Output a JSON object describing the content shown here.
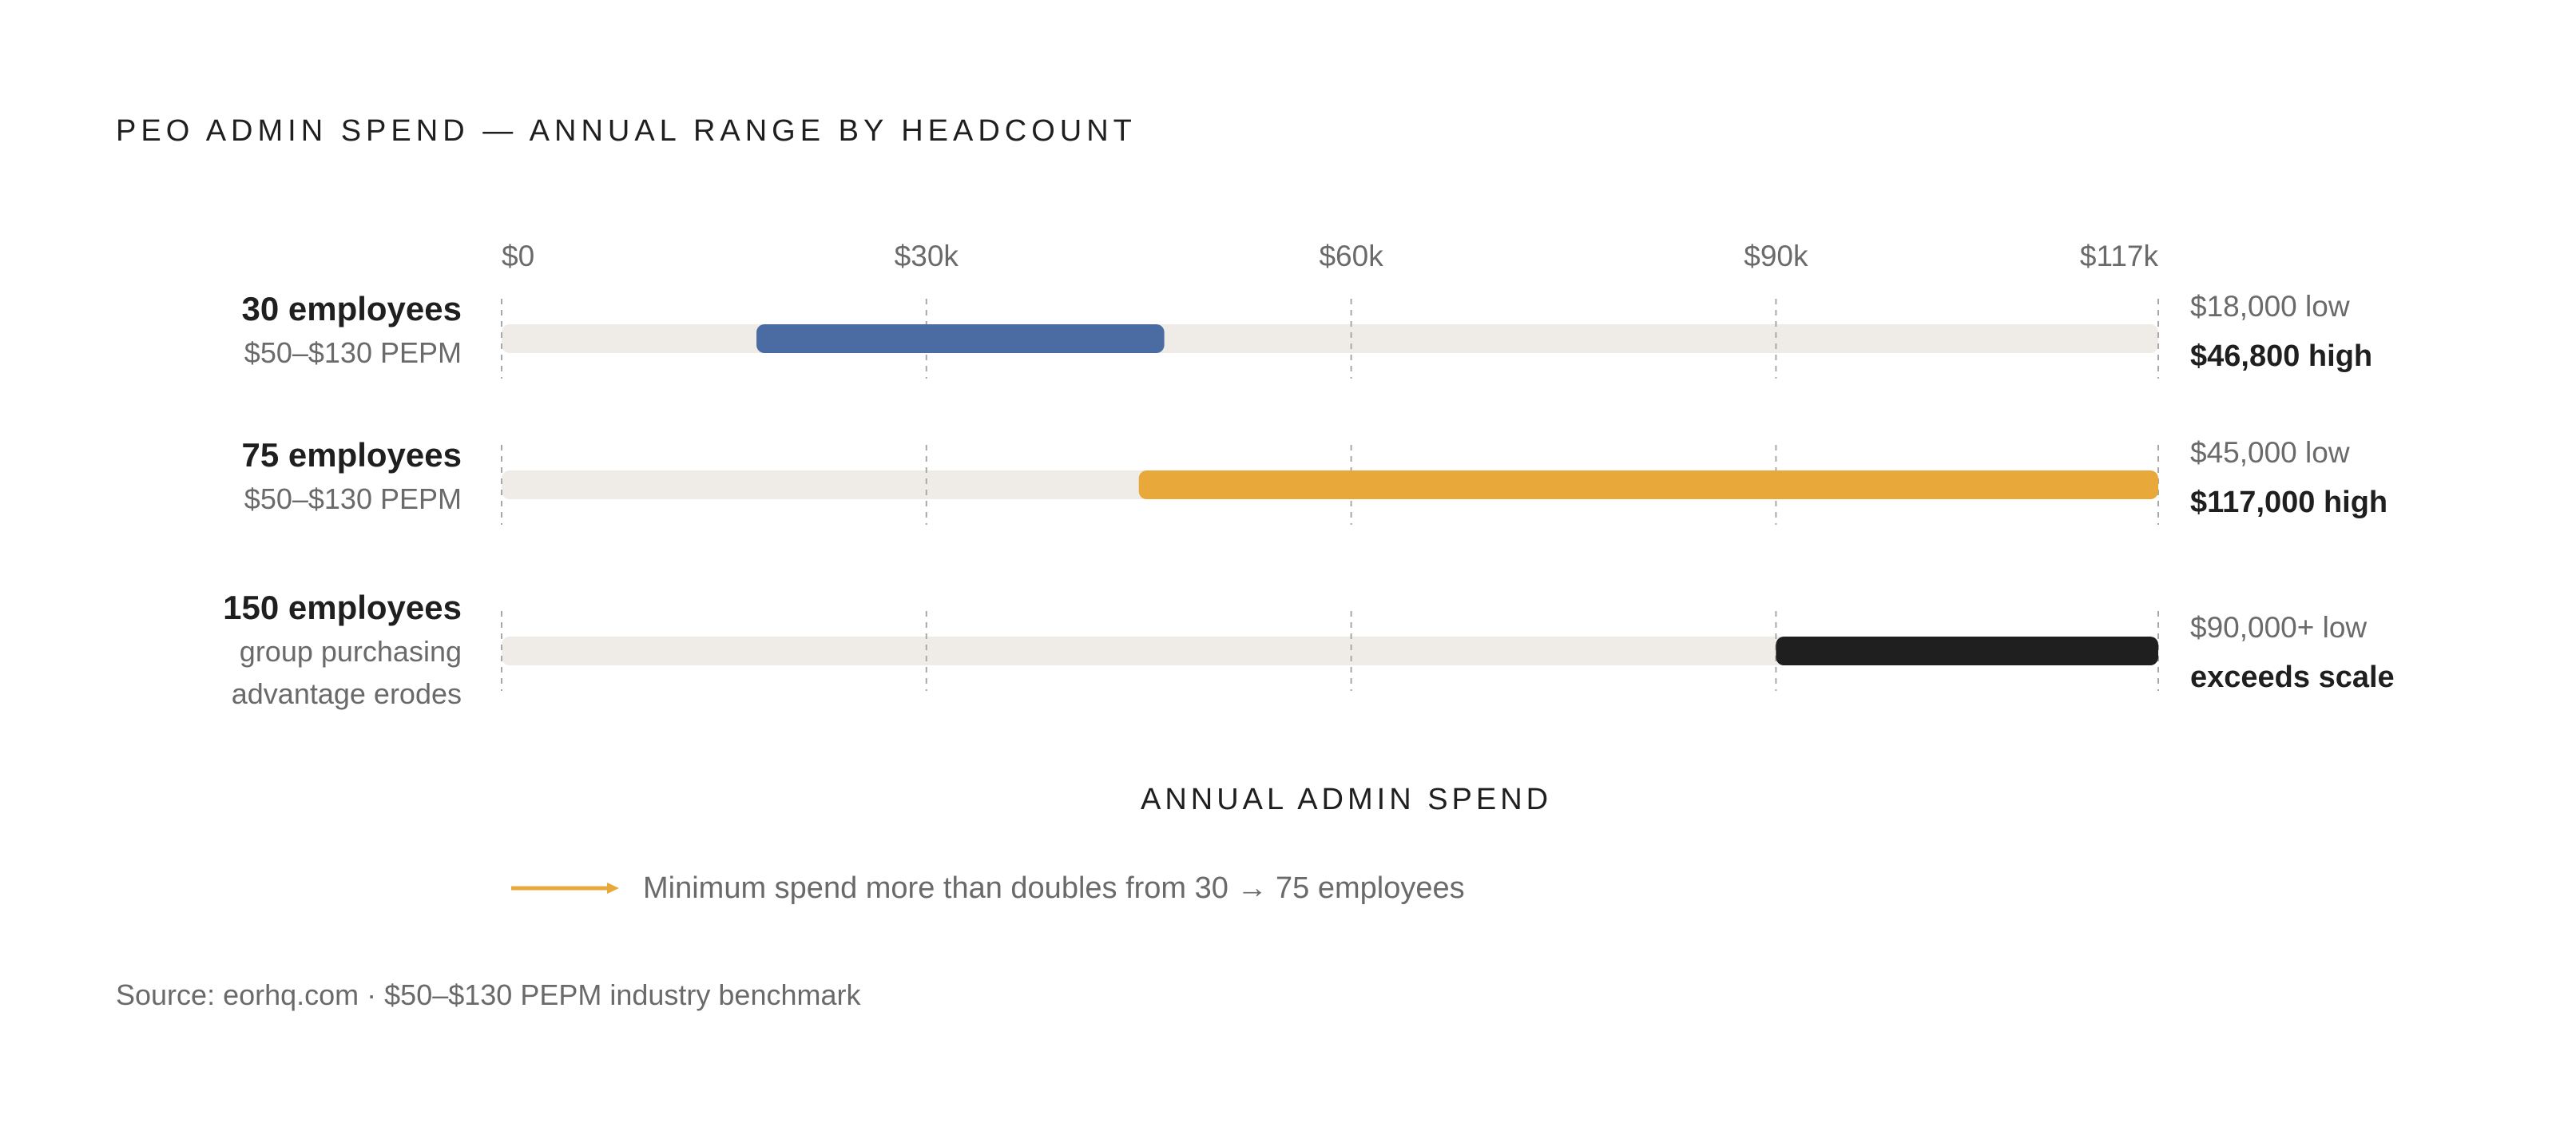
{
  "title": "PEO ADMIN SPEND — ANNUAL RANGE BY HEADCOUNT",
  "axis_title": "ANNUAL ADMIN SPEND",
  "annotation": {
    "text": "Minimum spend more than doubles from 30 → 75 employees",
    "color": "#E8A93A"
  },
  "source": "Source: eorhq.com · $50–$130 PEPM industry benchmark",
  "chart_data": {
    "type": "bar",
    "orientation": "horizontal-range",
    "x_range": [
      0,
      117000
    ],
    "x_ticks": [
      {
        "value": 0,
        "label": "$0"
      },
      {
        "value": 30000,
        "label": "$30k"
      },
      {
        "value": 60000,
        "label": "$60k"
      },
      {
        "value": 90000,
        "label": "$90k"
      },
      {
        "value": 117000,
        "label": "$117k"
      }
    ],
    "grid": true,
    "track_color": "#EFECE8",
    "rows": [
      {
        "label": "30 employees",
        "sublabel": [
          "$50–$130 PEPM"
        ],
        "low": 18000,
        "high": 46800,
        "color": "#4A6CA3",
        "low_text": "$18,000 low",
        "high_text": "$46,800 high"
      },
      {
        "label": "75 employees",
        "sublabel": [
          "$50–$130 PEPM"
        ],
        "low": 45000,
        "high": 117000,
        "color": "#E8A93A",
        "low_text": "$45,000 low",
        "high_text": "$117,000 high"
      },
      {
        "label": "150 employees",
        "sublabel": [
          "group purchasing",
          "advantage erodes"
        ],
        "low": 90000,
        "high": 117000,
        "color": "#1F1F1F",
        "low_text": "$90,000+ low",
        "high_text": "exceeds scale"
      }
    ]
  }
}
